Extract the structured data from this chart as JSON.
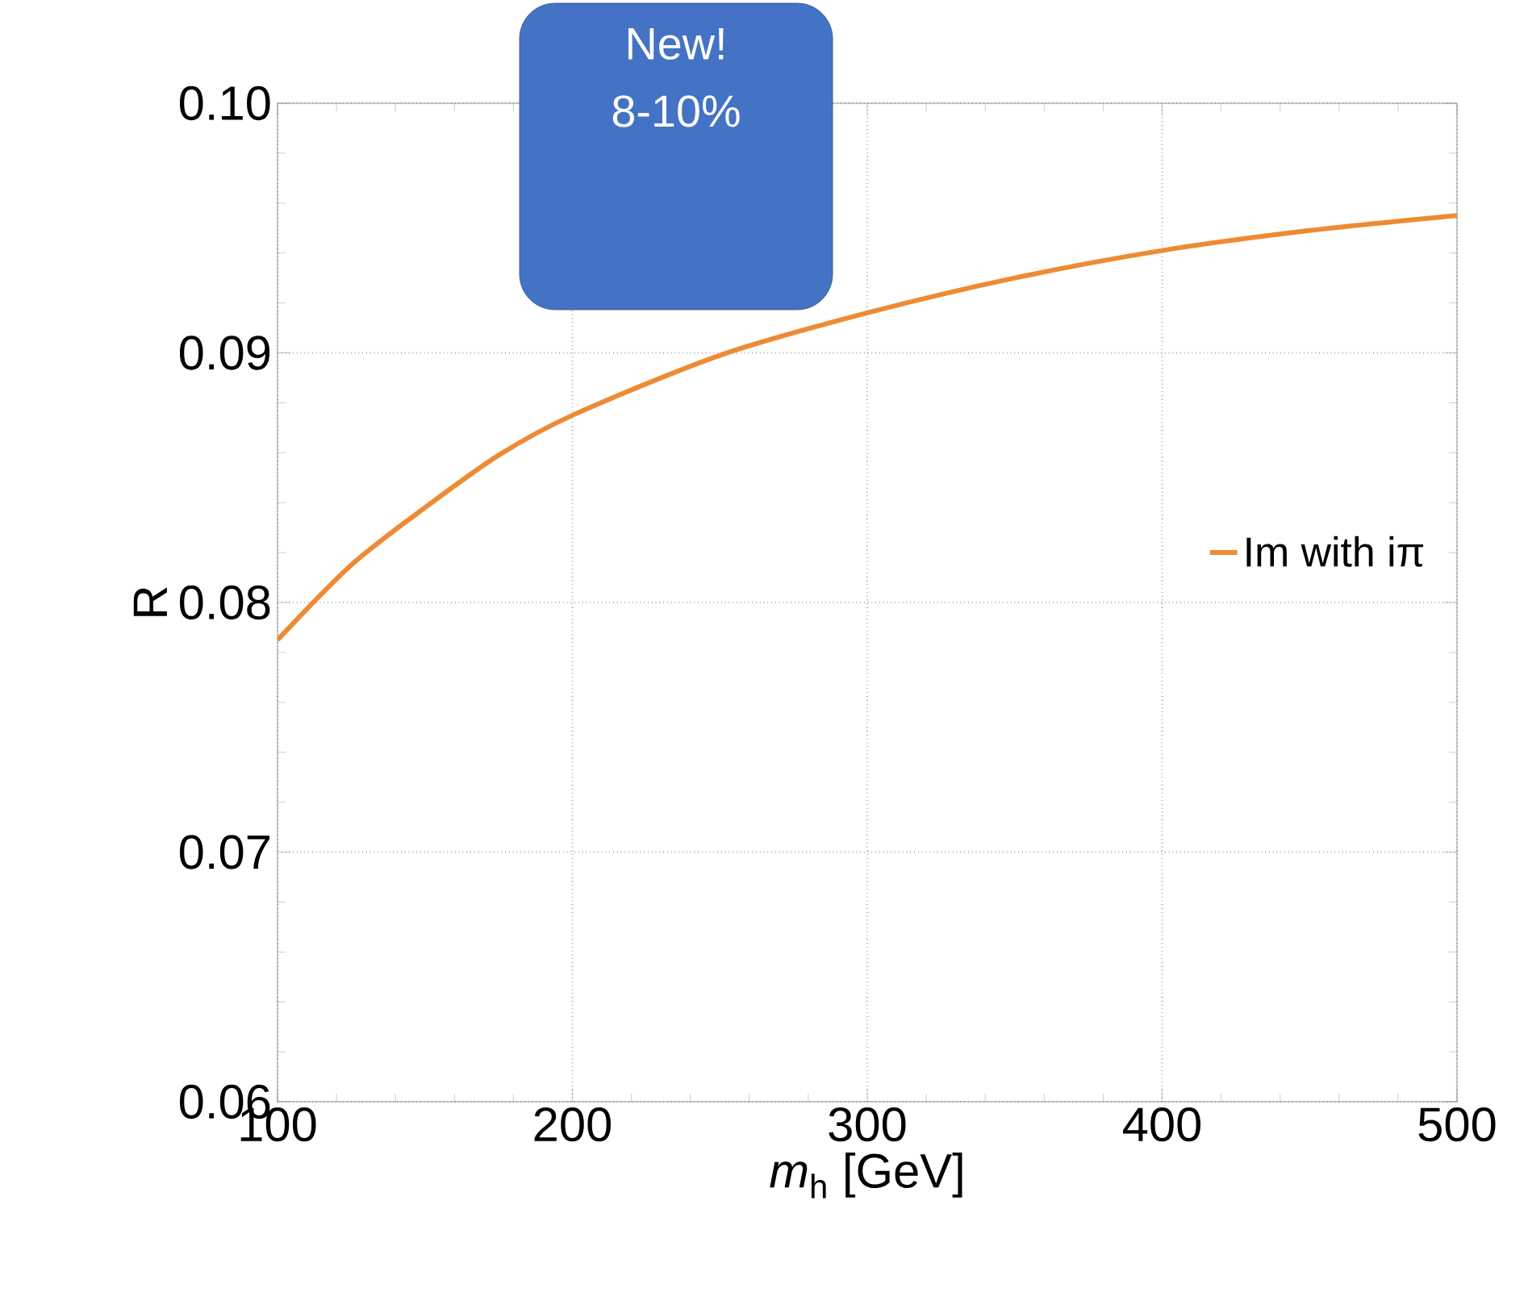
{
  "chart_data": {
    "type": "line",
    "xlabel": "*m*$_{h}$ [GeV]",
    "ylabel": "R",
    "annotations": [
      "New!",
      "8-10%"
    ],
    "xlim": [
      100,
      500
    ],
    "ylim": [
      0.06,
      0.1
    ],
    "xticks": [
      100,
      200,
      300,
      400,
      500
    ],
    "yticks": [
      0.06,
      0.07,
      0.08,
      0.09,
      {
        "value": 0.1,
        "label": "0.10"
      }
    ],
    "grid": true,
    "legend": "right",
    "series": [
      {
        "name": "Im with iπ",
        "color": "#ed8b35",
        "x": [
          100,
          125,
          150,
          175,
          200,
          250,
          300,
          350,
          400,
          450,
          500
        ],
        "values": [
          0.0785,
          0.0815,
          0.0838,
          0.0859,
          0.0875,
          0.0899,
          0.0916,
          0.093,
          0.0941,
          0.0949,
          0.0955
        ]
      }
    ]
  }
}
